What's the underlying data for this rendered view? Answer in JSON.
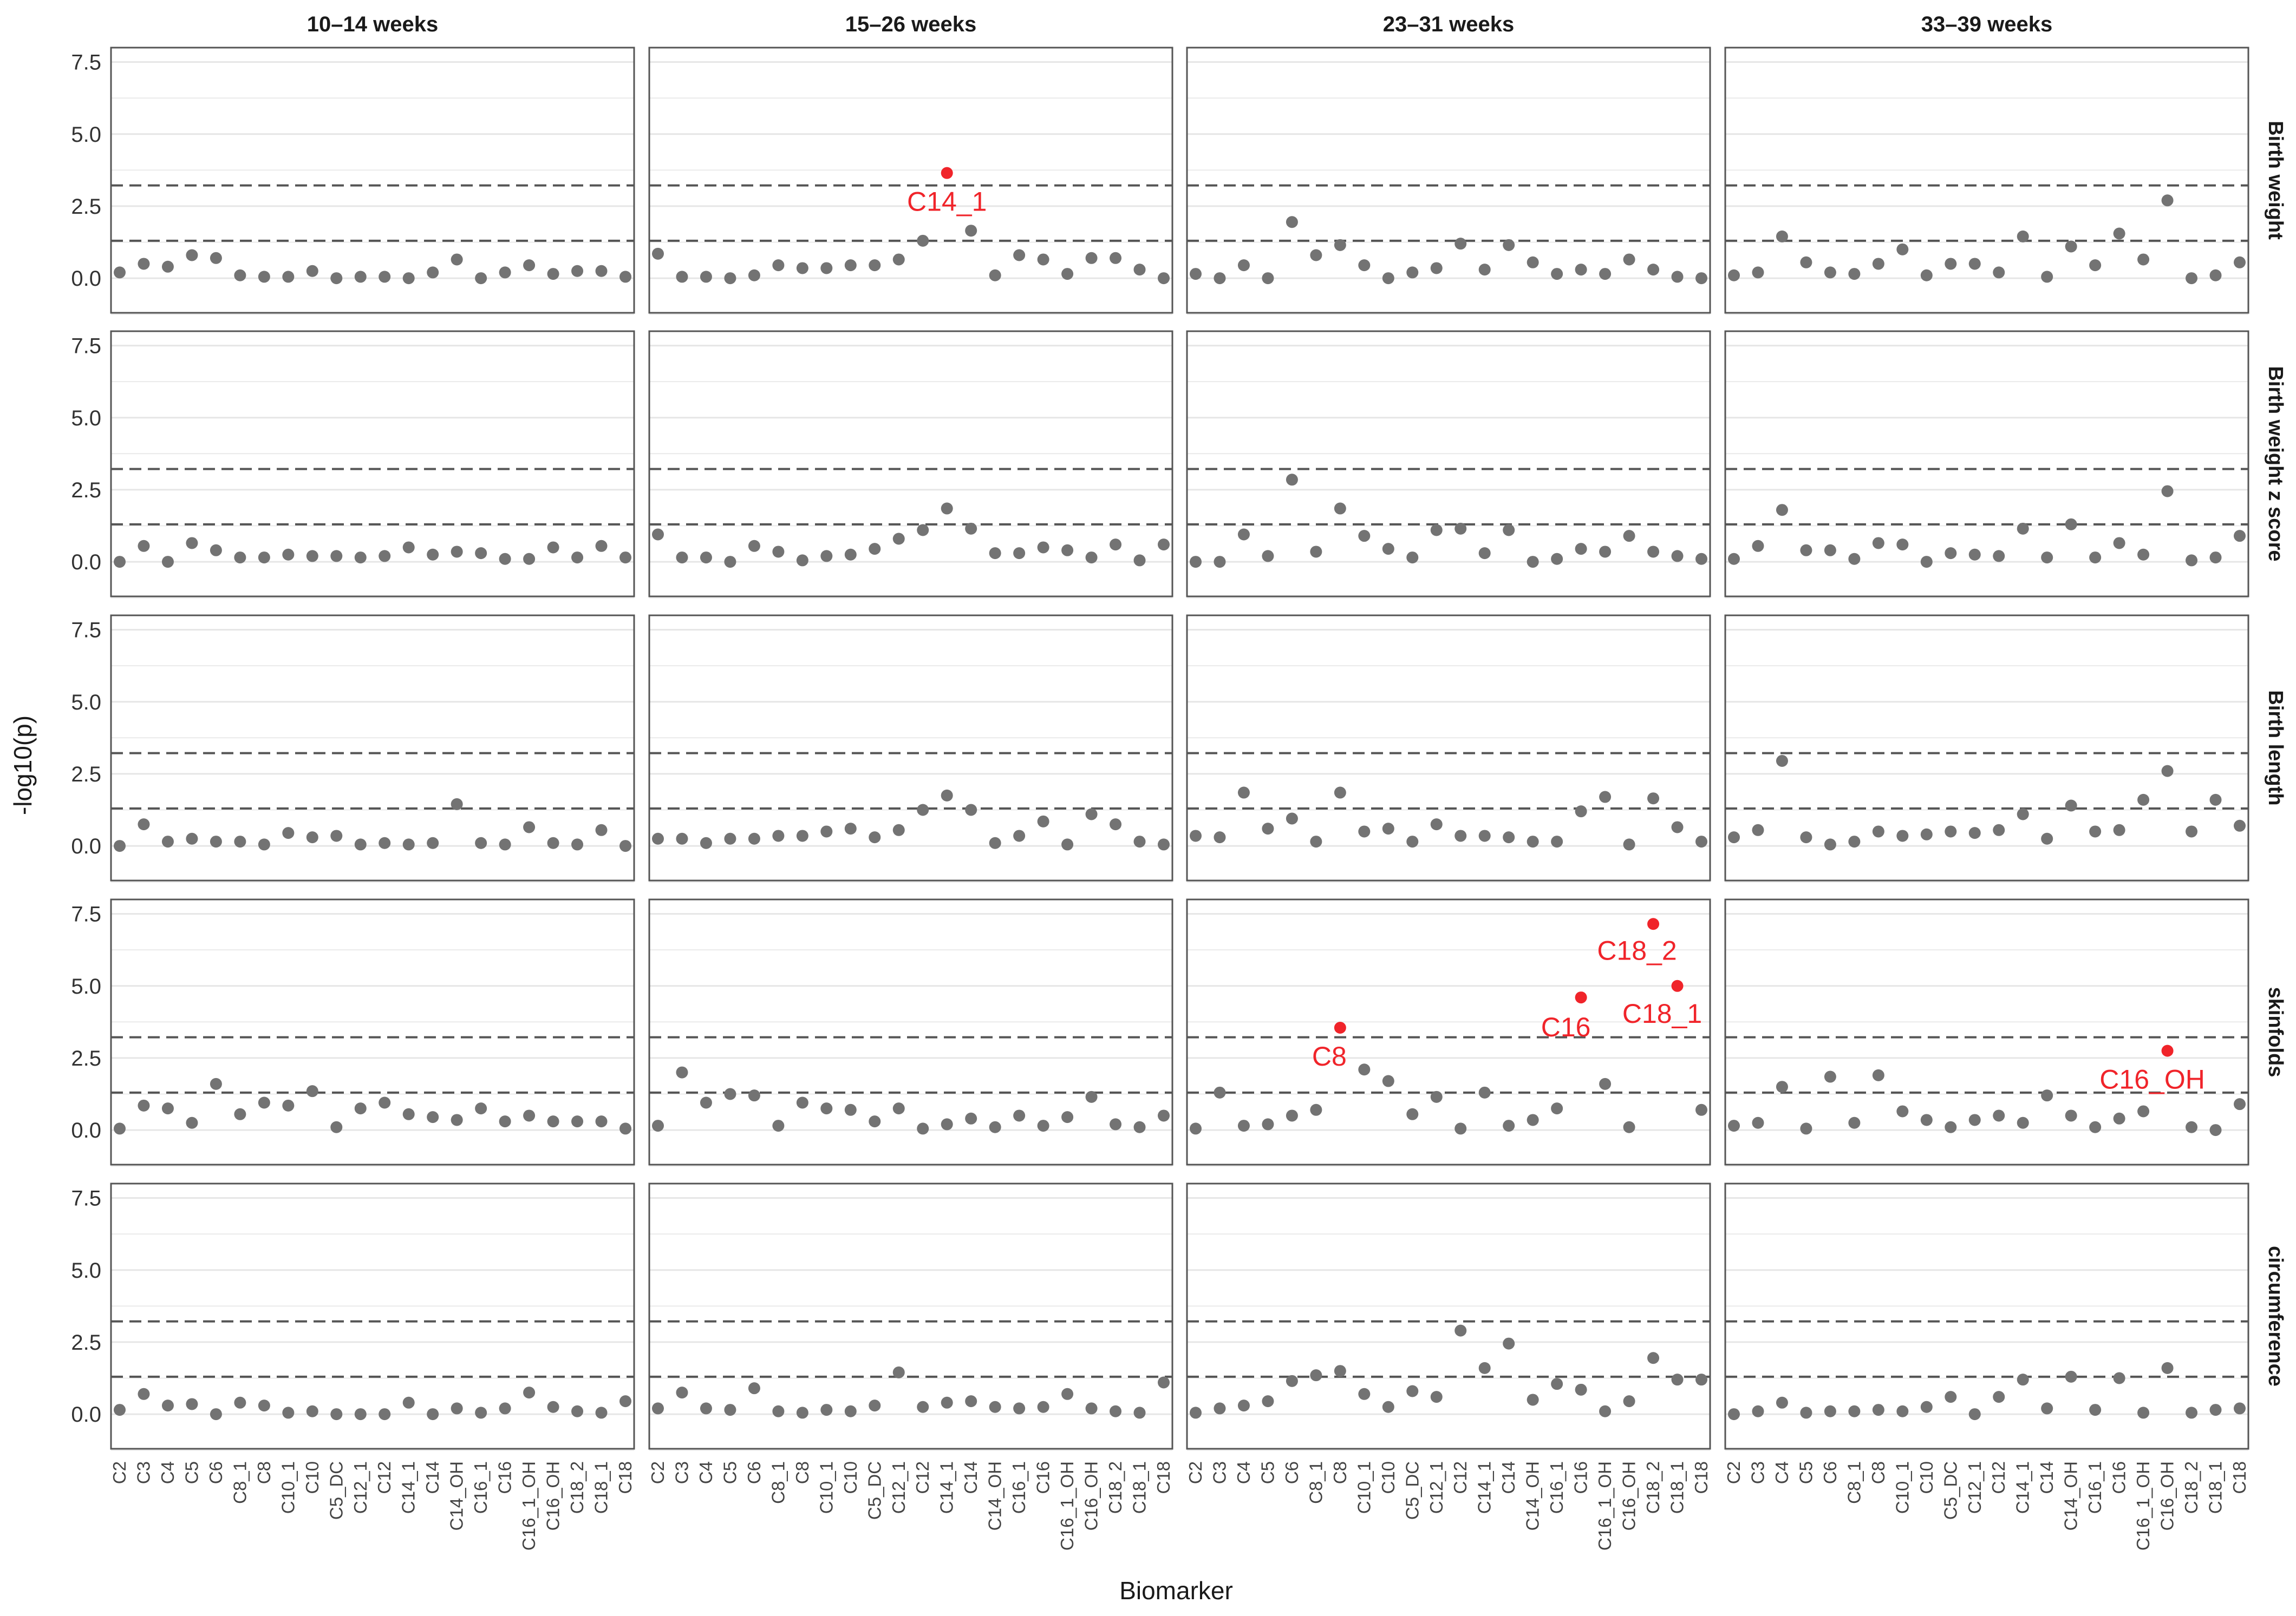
{
  "chart_data": {
    "type": "scatter",
    "xlabel": "Biomarker",
    "ylabel": "-log10(p)",
    "ylim": [
      -1.2,
      8.0
    ],
    "yticks": [
      "0.0",
      "2.5",
      "5.0",
      "7.5"
    ],
    "ytick_values": [
      0,
      2.5,
      5,
      7.5
    ],
    "grid": true,
    "reference_lines": [
      1.3,
      3.22
    ],
    "colors": {
      "point": "#737373",
      "highlight": "#f0242a",
      "panel_border": "#555555",
      "grid": "#e6e6e6",
      "ref_line": "#555555"
    },
    "columns": [
      "10–14 weeks",
      "15–26 weeks",
      "23–31 weeks",
      "33–39 weeks"
    ],
    "rows": [
      "Birth weight",
      "Birth weight z score",
      "Birth length",
      "skinfolds",
      "circumference"
    ],
    "categories": [
      "C2",
      "C3",
      "C4",
      "C5",
      "C6",
      "C8_1",
      "C8",
      "C10_1",
      "C10",
      "C5_DC",
      "C12_1",
      "C12",
      "C14_1",
      "C14",
      "C14_OH",
      "C16_1",
      "C16",
      "C16_1_OH",
      "C16_OH",
      "C18_2",
      "C18_1",
      "C18"
    ],
    "values": [
      [
        [
          0.2,
          0.5,
          0.4,
          0.8,
          0.7,
          0.1,
          0.05,
          0.05,
          0.25,
          0.0,
          0.05,
          0.05,
          0.0,
          0.2,
          0.65,
          0.0,
          0.2,
          0.45,
          0.15,
          0.25,
          0.25,
          0.05
        ],
        [
          0.85,
          0.05,
          0.05,
          0.0,
          0.1,
          0.45,
          0.35,
          0.35,
          0.45,
          0.45,
          0.65,
          1.3,
          3.65,
          1.65,
          0.1,
          0.8,
          0.65,
          0.15,
          0.7,
          0.7,
          0.3,
          0.0
        ],
        [
          0.15,
          0.0,
          0.45,
          0.0,
          1.95,
          0.8,
          1.15,
          0.45,
          0.0,
          0.2,
          0.35,
          1.2,
          0.3,
          1.15,
          0.55,
          0.15,
          0.3,
          0.15,
          0.65,
          0.3,
          0.05,
          0.0
        ],
        [
          0.1,
          0.2,
          1.45,
          0.55,
          0.2,
          0.15,
          0.5,
          1.0,
          0.1,
          0.5,
          0.5,
          0.2,
          1.45,
          0.05,
          1.1,
          0.45,
          1.55,
          0.65,
          2.7,
          0.0,
          0.1,
          0.55
        ]
      ],
      [
        [
          0.0,
          0.55,
          0.0,
          0.65,
          0.4,
          0.15,
          0.15,
          0.25,
          0.2,
          0.2,
          0.15,
          0.2,
          0.5,
          0.25,
          0.35,
          0.3,
          0.1,
          0.1,
          0.5,
          0.15,
          0.55,
          0.15
        ],
        [
          0.95,
          0.15,
          0.15,
          0.0,
          0.55,
          0.35,
          0.05,
          0.2,
          0.25,
          0.45,
          0.8,
          1.1,
          1.85,
          1.15,
          0.3,
          0.3,
          0.5,
          0.4,
          0.15,
          0.6,
          0.05,
          0.6
        ],
        [
          0.0,
          0.0,
          0.95,
          0.2,
          2.85,
          0.35,
          1.85,
          0.9,
          0.45,
          0.15,
          1.1,
          1.15,
          0.3,
          1.1,
          0.0,
          0.1,
          0.45,
          0.35,
          0.9,
          0.35,
          0.2,
          0.1
        ],
        [
          0.1,
          0.55,
          1.8,
          0.4,
          0.4,
          0.1,
          0.65,
          0.6,
          0.0,
          0.3,
          0.25,
          0.2,
          1.15,
          0.15,
          1.3,
          0.15,
          0.65,
          0.25,
          2.45,
          0.05,
          0.15,
          0.9
        ]
      ],
      [
        [
          0.0,
          0.75,
          0.15,
          0.25,
          0.15,
          0.15,
          0.05,
          0.45,
          0.3,
          0.35,
          0.05,
          0.1,
          0.05,
          0.1,
          1.45,
          0.1,
          0.05,
          0.65,
          0.1,
          0.05,
          0.55,
          0.0
        ],
        [
          0.25,
          0.25,
          0.1,
          0.25,
          0.25,
          0.35,
          0.35,
          0.5,
          0.6,
          0.3,
          0.55,
          1.25,
          1.75,
          1.25,
          0.1,
          0.35,
          0.85,
          0.05,
          1.1,
          0.75,
          0.15,
          0.05
        ],
        [
          0.35,
          0.3,
          1.85,
          0.6,
          0.95,
          0.15,
          1.85,
          0.5,
          0.6,
          0.15,
          0.75,
          0.35,
          0.35,
          0.3,
          0.15,
          0.15,
          1.2,
          1.7,
          0.05,
          1.65,
          0.65,
          0.15
        ],
        [
          0.3,
          0.55,
          2.95,
          0.3,
          0.05,
          0.15,
          0.5,
          0.35,
          0.4,
          0.5,
          0.45,
          0.55,
          1.1,
          0.25,
          1.4,
          0.5,
          0.55,
          1.6,
          2.6,
          0.5,
          1.6,
          0.7
        ]
      ],
      [
        [
          0.05,
          0.85,
          0.75,
          0.25,
          1.6,
          0.55,
          0.95,
          0.85,
          1.35,
          0.1,
          0.75,
          0.95,
          0.55,
          0.45,
          0.35,
          0.75,
          0.3,
          0.5,
          0.3,
          0.3,
          0.3,
          0.05
        ],
        [
          0.15,
          2.0,
          0.95,
          1.25,
          1.2,
          0.15,
          0.95,
          0.75,
          0.7,
          0.3,
          0.75,
          0.05,
          0.2,
          0.4,
          0.1,
          0.5,
          0.15,
          0.45,
          1.15,
          0.2,
          0.1,
          0.5
        ],
        [
          0.05,
          1.3,
          0.15,
          0.2,
          0.5,
          0.7,
          3.55,
          2.1,
          1.7,
          0.55,
          1.15,
          0.05,
          1.3,
          0.15,
          0.35,
          0.75,
          4.6,
          1.6,
          0.1,
          7.15,
          5.0,
          0.7
        ],
        [
          0.15,
          0.25,
          1.5,
          0.05,
          1.85,
          0.25,
          1.9,
          0.65,
          0.35,
          0.1,
          0.35,
          0.5,
          0.25,
          1.2,
          0.5,
          0.1,
          0.4,
          0.65,
          2.75,
          0.1,
          0.0,
          0.9
        ]
      ],
      [
        [
          0.15,
          0.7,
          0.3,
          0.35,
          0.0,
          0.4,
          0.3,
          0.05,
          0.1,
          0.0,
          0.0,
          0.0,
          0.4,
          0.0,
          0.2,
          0.05,
          0.2,
          0.75,
          0.25,
          0.1,
          0.05,
          0.45
        ],
        [
          0.2,
          0.75,
          0.2,
          0.15,
          0.9,
          0.1,
          0.05,
          0.15,
          0.1,
          0.3,
          1.45,
          0.25,
          0.4,
          0.45,
          0.25,
          0.2,
          0.25,
          0.7,
          0.2,
          0.1,
          0.05,
          1.1
        ],
        [
          0.05,
          0.2,
          0.3,
          0.45,
          1.15,
          1.35,
          1.5,
          0.7,
          0.25,
          0.8,
          0.6,
          2.9,
          1.6,
          2.45,
          0.5,
          1.05,
          0.85,
          0.1,
          0.45,
          1.95,
          1.2,
          1.2
        ],
        [
          0.0,
          0.1,
          0.4,
          0.05,
          0.1,
          0.1,
          0.15,
          0.1,
          0.25,
          0.6,
          0.0,
          0.6,
          1.2,
          0.2,
          1.3,
          0.15,
          1.25,
          0.05,
          1.6,
          0.05,
          0.15,
          0.2
        ]
      ]
    ],
    "annotations": [
      {
        "row": 0,
        "col": 1,
        "category": "C14_1",
        "label": "C14_1",
        "y": 3.65
      },
      {
        "row": 3,
        "col": 2,
        "category": "C8",
        "label": "C8",
        "y": 3.55
      },
      {
        "row": 3,
        "col": 2,
        "category": "C16",
        "label": "C16",
        "y": 4.6
      },
      {
        "row": 3,
        "col": 2,
        "category": "C18_2",
        "label": "C18_2",
        "y": 7.15
      },
      {
        "row": 3,
        "col": 2,
        "category": "C18_1",
        "label": "C18_1",
        "y": 5.0
      },
      {
        "row": 3,
        "col": 3,
        "category": "C16_OH",
        "label": "C16_OH",
        "y": 2.75
      }
    ]
  }
}
